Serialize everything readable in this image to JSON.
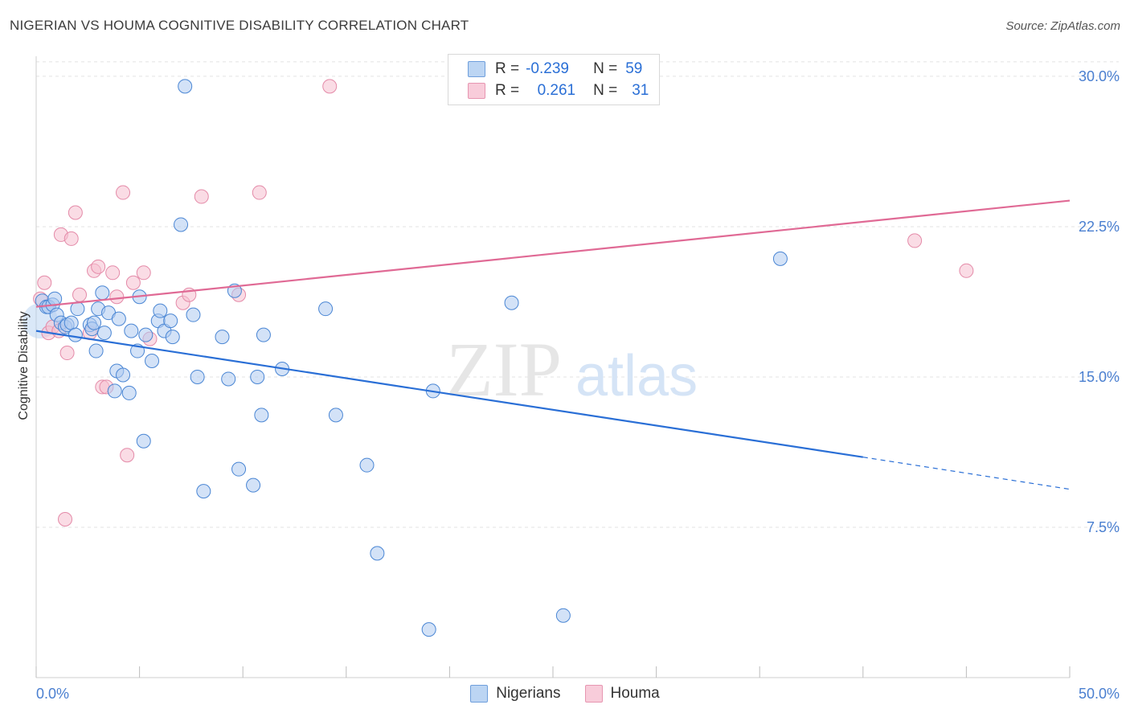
{
  "title": "NIGERIAN VS HOUMA COGNITIVE DISABILITY CORRELATION CHART",
  "source": "Source: ZipAtlas.com",
  "watermark": {
    "zip": "ZIP",
    "atlas": "atlas"
  },
  "colors": {
    "nigerian_fill": "#aecbf0",
    "nigerian_stroke": "#4a86d4",
    "nigerian_line": "#2a6fd6",
    "houma_fill": "#f6bfd0",
    "houma_stroke": "#e48aa8",
    "houma_line": "#e06a95",
    "tick_text": "#4a7fd0",
    "grid": "#e3e3e3"
  },
  "legend": {
    "rows": [
      {
        "r_label": "R =",
        "r_value": "-0.239",
        "n_label": "N =",
        "n_value": "59"
      },
      {
        "r_label": "R =",
        "r_value": "0.261",
        "n_label": "N =",
        "n_value": "31"
      }
    ]
  },
  "chart_data": {
    "type": "scatter",
    "ylabel": "Cognitive Disability",
    "xlim": [
      0,
      50
    ],
    "ylim": [
      0,
      31
    ],
    "x_tick_labels": [
      "0.0%",
      "50.0%"
    ],
    "y_ticks": [
      7.5,
      15.0,
      22.5,
      30.0
    ],
    "y_tick_labels": [
      "7.5%",
      "15.0%",
      "22.5%",
      "30.0%"
    ],
    "grid": "horizontal dashed",
    "series": [
      {
        "name": "Nigerians",
        "points": [
          [
            0.3,
            18.8
          ],
          [
            0.5,
            18.5
          ],
          [
            0.6,
            18.5
          ],
          [
            0.8,
            18.6
          ],
          [
            0.9,
            18.9
          ],
          [
            1.0,
            18.1
          ],
          [
            1.2,
            17.7
          ],
          [
            1.4,
            17.5
          ],
          [
            1.5,
            17.6
          ],
          [
            1.7,
            17.7
          ],
          [
            1.9,
            17.1
          ],
          [
            2.0,
            18.4
          ],
          [
            2.6,
            17.6
          ],
          [
            2.7,
            17.4
          ],
          [
            2.8,
            17.7
          ],
          [
            2.9,
            16.3
          ],
          [
            3.0,
            18.4
          ],
          [
            3.2,
            19.2
          ],
          [
            3.3,
            17.2
          ],
          [
            3.5,
            18.2
          ],
          [
            3.8,
            14.3
          ],
          [
            3.9,
            15.3
          ],
          [
            4.0,
            17.9
          ],
          [
            4.2,
            15.1
          ],
          [
            4.5,
            14.2
          ],
          [
            4.6,
            17.3
          ],
          [
            4.9,
            16.3
          ],
          [
            5.0,
            19.0
          ],
          [
            5.2,
            11.8
          ],
          [
            5.3,
            17.1
          ],
          [
            5.6,
            15.8
          ],
          [
            5.9,
            17.8
          ],
          [
            6.0,
            18.3
          ],
          [
            6.2,
            17.3
          ],
          [
            6.5,
            17.8
          ],
          [
            6.6,
            17.0
          ],
          [
            7.0,
            22.6
          ],
          [
            7.2,
            29.5
          ],
          [
            7.6,
            18.1
          ],
          [
            7.8,
            15.0
          ],
          [
            8.1,
            9.3
          ],
          [
            9.0,
            17.0
          ],
          [
            9.3,
            14.9
          ],
          [
            9.6,
            19.3
          ],
          [
            9.8,
            10.4
          ],
          [
            10.5,
            9.6
          ],
          [
            10.7,
            15.0
          ],
          [
            10.9,
            13.1
          ],
          [
            11.0,
            17.1
          ],
          [
            11.9,
            15.4
          ],
          [
            14.0,
            18.4
          ],
          [
            14.5,
            13.1
          ],
          [
            16.0,
            10.6
          ],
          [
            16.5,
            6.2
          ],
          [
            19.0,
            2.4
          ],
          [
            19.2,
            14.3
          ],
          [
            23.0,
            18.7
          ],
          [
            25.5,
            3.1
          ],
          [
            36.0,
            20.9
          ]
        ]
      },
      {
        "name": "Houma",
        "points": [
          [
            0.2,
            18.9
          ],
          [
            0.4,
            19.7
          ],
          [
            0.6,
            17.2
          ],
          [
            0.8,
            17.5
          ],
          [
            1.2,
            22.1
          ],
          [
            1.5,
            16.2
          ],
          [
            1.7,
            21.9
          ],
          [
            1.9,
            23.2
          ],
          [
            2.1,
            19.1
          ],
          [
            2.6,
            17.2
          ],
          [
            2.8,
            20.3
          ],
          [
            3.0,
            20.5
          ],
          [
            3.2,
            14.5
          ],
          [
            3.4,
            14.5
          ],
          [
            3.7,
            20.2
          ],
          [
            3.9,
            19.0
          ],
          [
            4.2,
            24.2
          ],
          [
            4.4,
            11.1
          ],
          [
            4.7,
            19.7
          ],
          [
            5.2,
            20.2
          ],
          [
            5.5,
            16.9
          ],
          [
            7.1,
            18.7
          ],
          [
            7.4,
            19.1
          ],
          [
            8.0,
            24.0
          ],
          [
            9.8,
            19.1
          ],
          [
            10.8,
            24.2
          ],
          [
            14.2,
            29.5
          ],
          [
            1.4,
            7.9
          ],
          [
            42.5,
            21.8
          ],
          [
            45.0,
            20.3
          ],
          [
            1.1,
            17.3
          ]
        ]
      }
    ],
    "trendlines": [
      {
        "series": "Nigerians",
        "solid_from": [
          0,
          17.3
        ],
        "solid_to": [
          40,
          11.0
        ],
        "dashed_to": [
          50,
          9.4
        ]
      },
      {
        "series": "Houma",
        "from": [
          0,
          18.5
        ],
        "to": [
          50,
          23.8
        ]
      }
    ]
  },
  "bottom_legend": [
    {
      "label": "Nigerians"
    },
    {
      "label": "Houma"
    }
  ]
}
